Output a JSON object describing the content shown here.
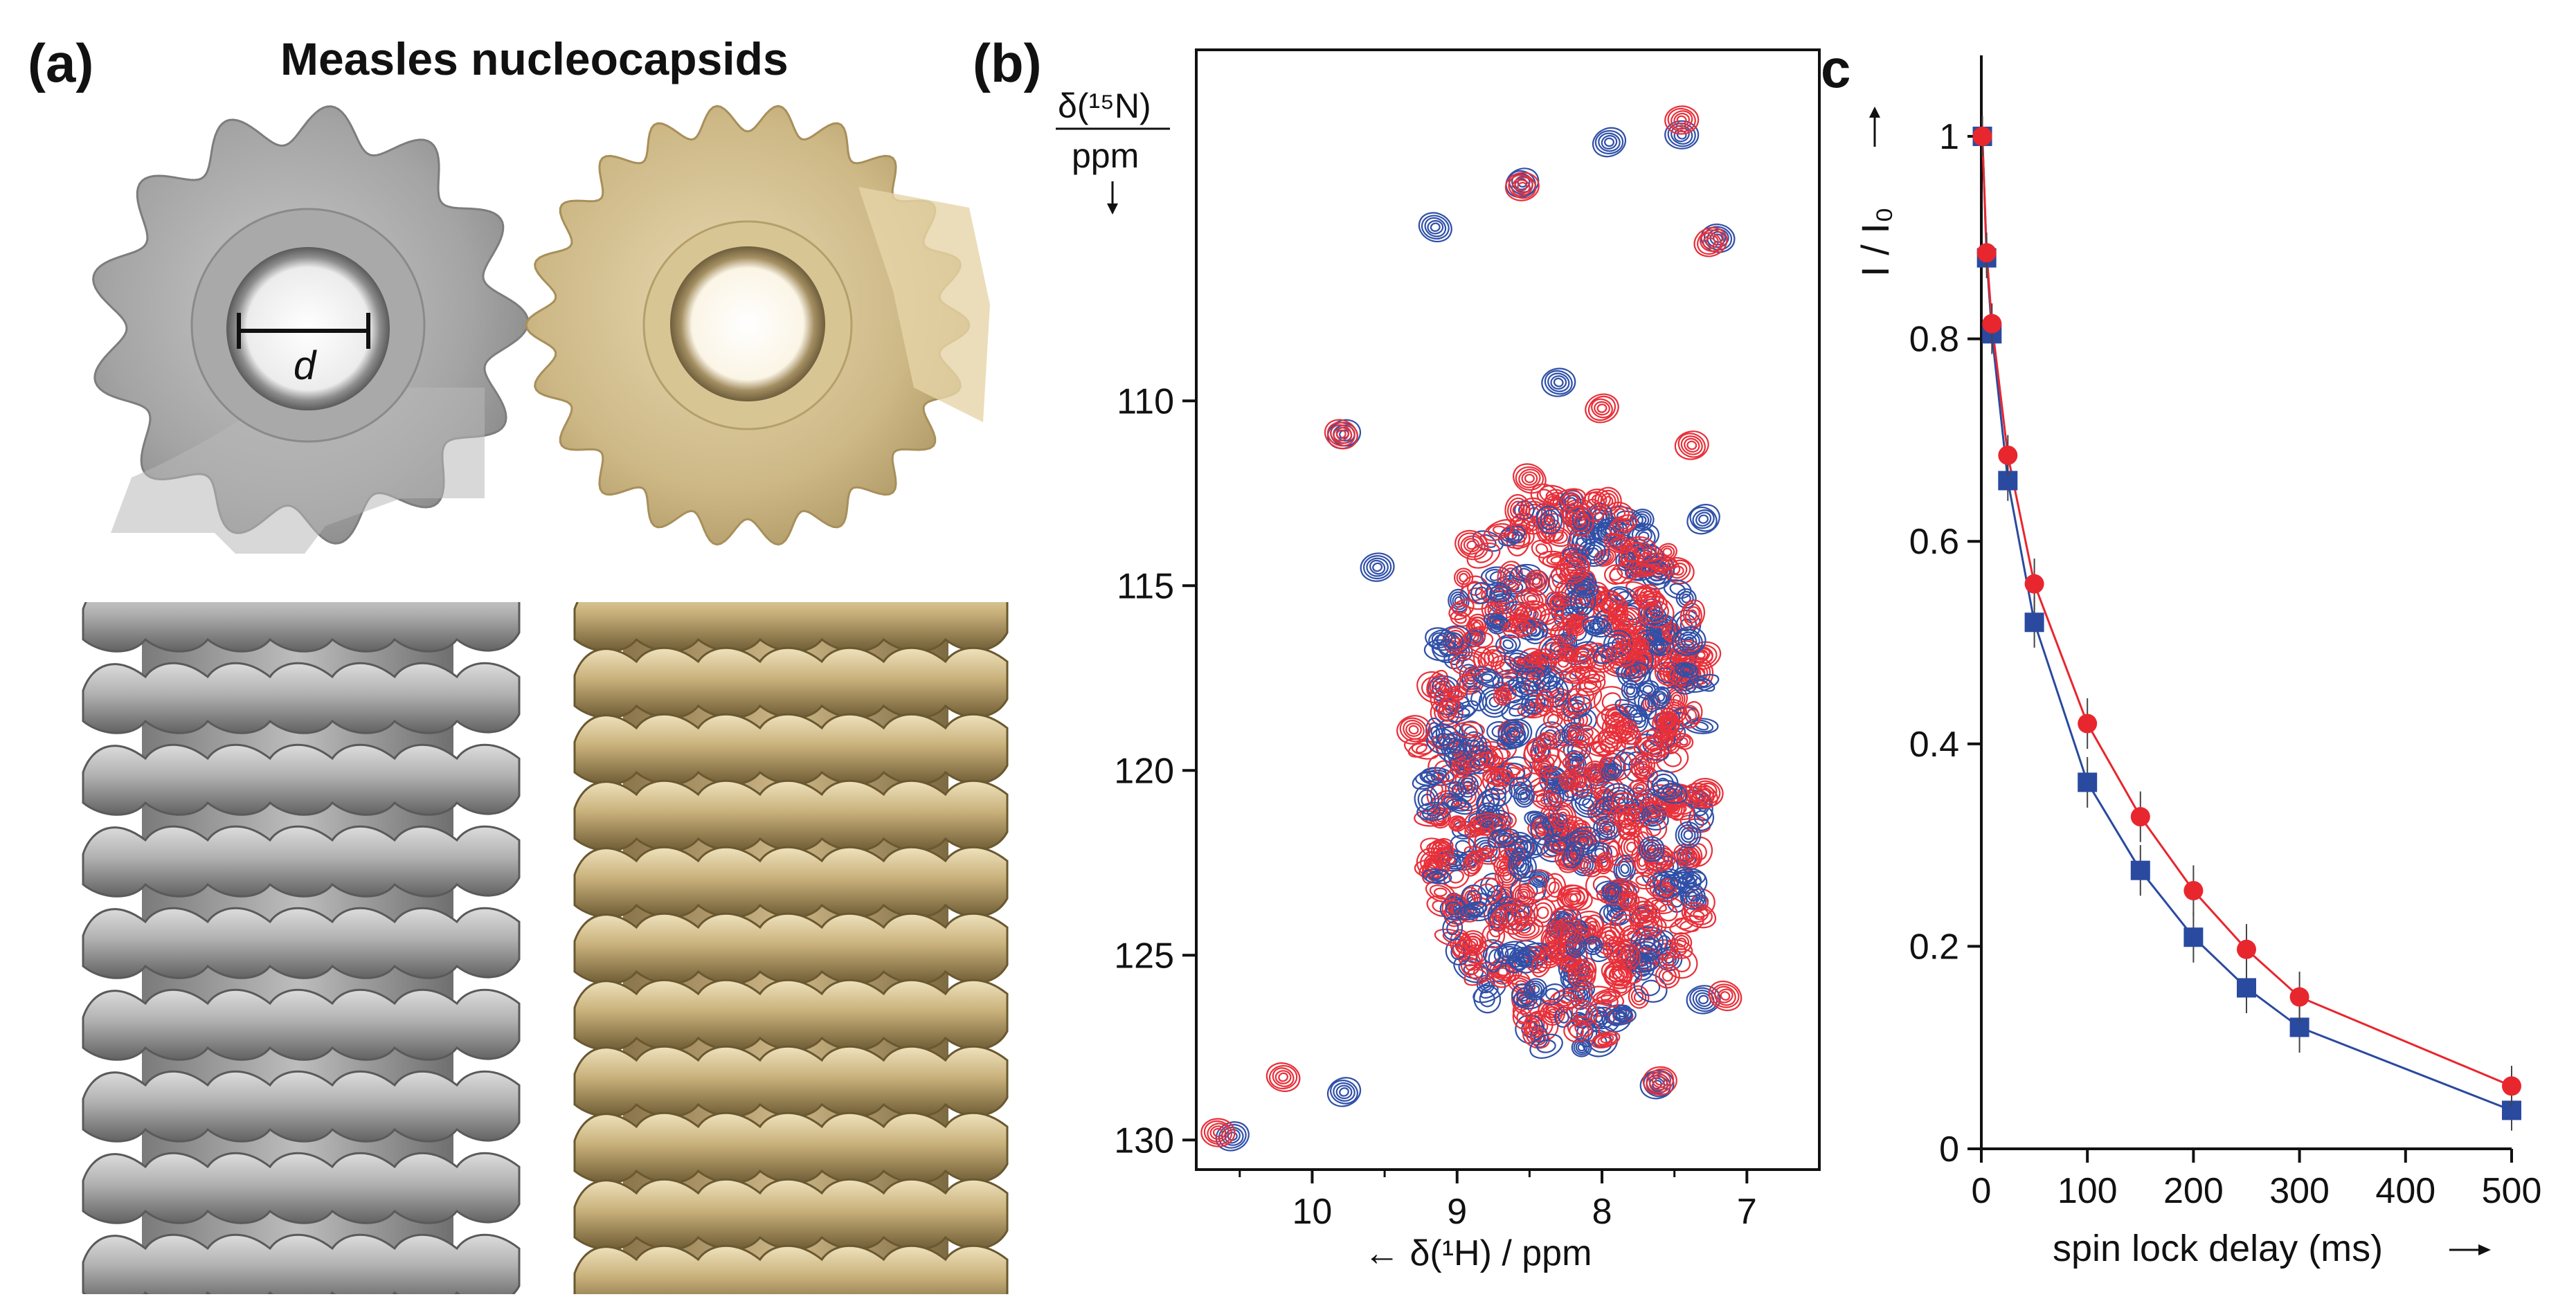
{
  "panel_a": {
    "label": "(a)",
    "title": "Measles nucleocapsids",
    "diameter_label": "d",
    "colors": {
      "gray_model": "#9e9e9e",
      "gold_model": "#c9b68a"
    }
  },
  "chart_data": [
    {
      "id": "panel-b",
      "type": "heatmap",
      "subtype": "2D NMR contour spectrum (1H-15N correlation)",
      "panel_label": "(b)",
      "xlabel": "← δ(¹H) / ppm",
      "ylabel_top": "δ(¹⁵N)",
      "ylabel_bottom": "ppm",
      "xlim": [
        10.8,
        6.5
      ],
      "ylim": [
        100.5,
        130.8
      ],
      "x_ticks": [
        "10",
        "9",
        "8",
        "7"
      ],
      "y_ticks": [
        "110",
        "115",
        "120",
        "125",
        "130"
      ],
      "series": [
        {
          "color": "#3050a8",
          "peaks": [
            [
              9.78,
              110.9
            ],
            [
              9.55,
              114.5
            ],
            [
              9.78,
              128.7
            ],
            [
              10.55,
              129.9
            ],
            [
              7.62,
              128.5
            ],
            [
              7.3,
              126.2
            ],
            [
              9.15,
              105.3
            ],
            [
              8.55,
              104.1
            ],
            [
              7.95,
              103.0
            ],
            [
              7.45,
              102.8
            ],
            [
              7.2,
              105.6
            ],
            [
              8.3,
              109.5
            ],
            [
              7.3,
              113.2
            ],
            [
              8.6,
              119.0
            ],
            [
              7.4,
              116.5
            ]
          ]
        },
        {
          "color": "#e8303a",
          "peaks": [
            [
              10.65,
              129.8
            ],
            [
              10.2,
              128.3
            ],
            [
              9.8,
              110.9
            ],
            [
              7.25,
              105.7
            ],
            [
              7.45,
              102.4
            ],
            [
              8.55,
              104.2
            ],
            [
              8.9,
              113.9
            ],
            [
              9.3,
              118.9
            ],
            [
              7.28,
              120.6
            ],
            [
              7.85,
              125.0
            ],
            [
              7.6,
              128.4
            ],
            [
              7.15,
              126.1
            ],
            [
              8.0,
              110.2
            ],
            [
              8.5,
              112.1
            ],
            [
              7.38,
              111.2
            ]
          ]
        }
      ],
      "cluster": {
        "x_range": [
          7.3,
          9.3
        ],
        "y_range": [
          112.0,
          127.5
        ]
      }
    },
    {
      "id": "panel-c",
      "type": "scatter",
      "panel_label": "c",
      "xlabel": "spin lock delay (ms)",
      "ylabel": "I / I₀",
      "xlim": [
        0,
        500
      ],
      "ylim": [
        0,
        1.08
      ],
      "x_ticks": [
        "0",
        "100",
        "200",
        "300",
        "400",
        "500"
      ],
      "y_ticks": [
        "0",
        "0.2",
        "0.4",
        "0.6",
        "0.8",
        "1"
      ],
      "grid": false,
      "series": [
        {
          "marker": "square",
          "color": "#2a4aa0",
          "x": [
            1,
            5,
            10,
            25,
            50,
            100,
            150,
            200,
            250,
            300,
            500
          ],
          "y": [
            1.0,
            0.88,
            0.805,
            0.66,
            0.52,
            0.362,
            0.275,
            0.209,
            0.159,
            0.12,
            0.038
          ],
          "err": [
            0.02,
            0.02,
            0.02,
            0.02,
            0.025,
            0.025,
            0.025,
            0.025,
            0.025,
            0.025,
            0.02
          ]
        },
        {
          "marker": "circle",
          "color": "#e8262e",
          "x": [
            1,
            5,
            10,
            25,
            50,
            100,
            150,
            200,
            250,
            300,
            500
          ],
          "y": [
            1.0,
            0.885,
            0.815,
            0.685,
            0.558,
            0.42,
            0.328,
            0.255,
            0.197,
            0.15,
            0.062
          ],
          "err": [
            0.02,
            0.02,
            0.02,
            0.02,
            0.025,
            0.025,
            0.025,
            0.025,
            0.025,
            0.025,
            0.02
          ]
        }
      ]
    }
  ]
}
